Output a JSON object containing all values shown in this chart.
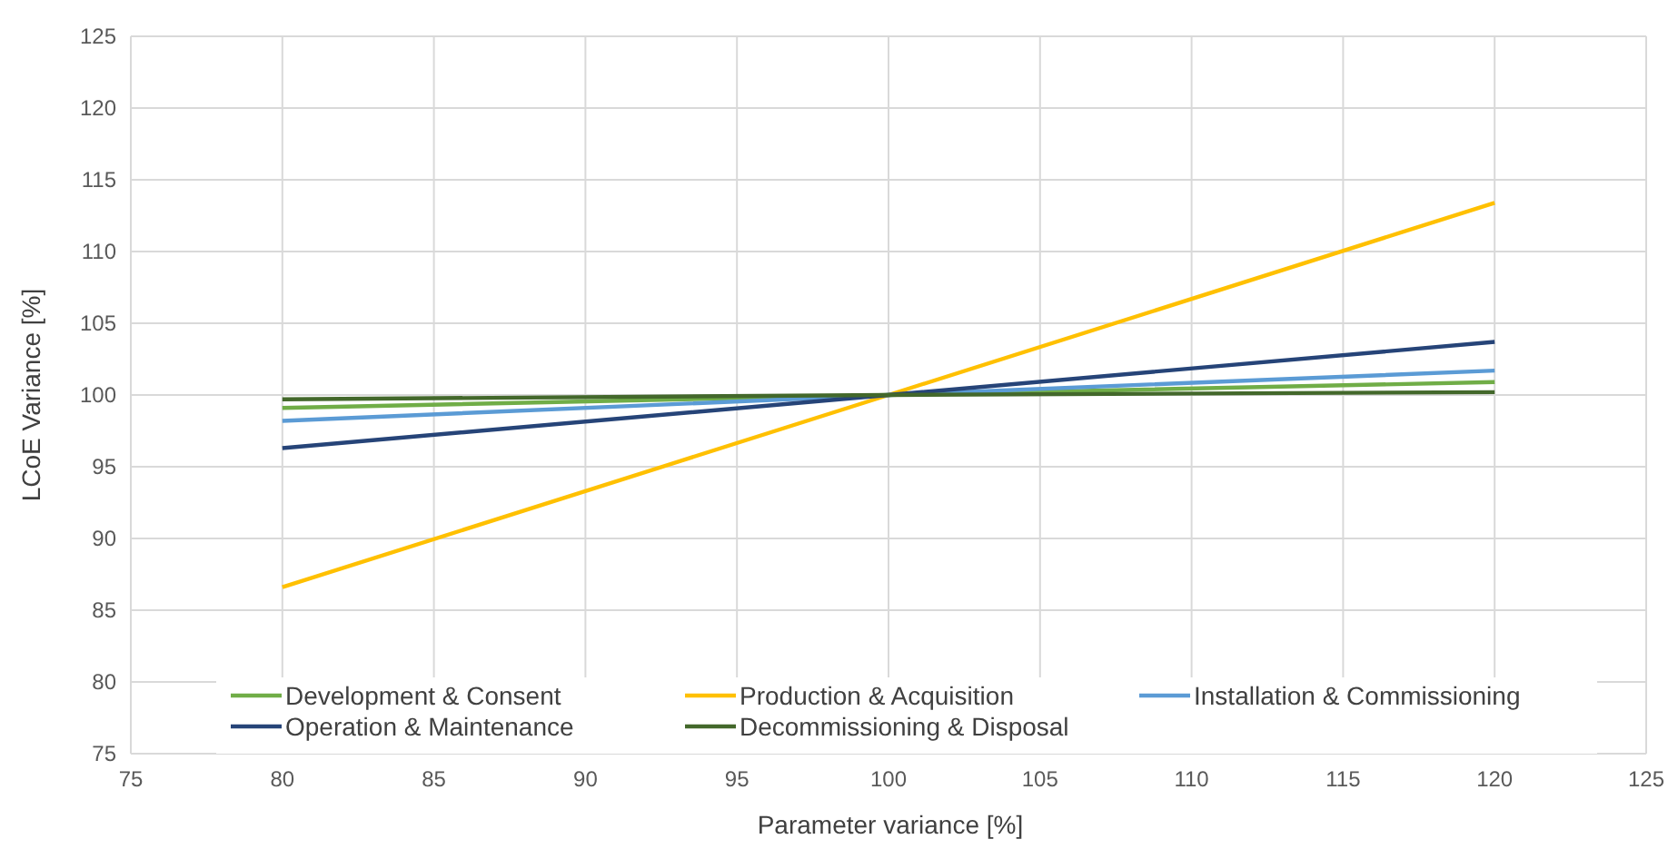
{
  "chart_data": {
    "type": "line",
    "xlabel": "Parameter variance [%]",
    "ylabel": "LCoE Variance [%]",
    "x": [
      80,
      100,
      120
    ],
    "xlim": [
      75,
      125
    ],
    "xticks": [
      75,
      80,
      85,
      90,
      95,
      100,
      105,
      110,
      115,
      120,
      125
    ],
    "ylim": [
      75,
      125
    ],
    "yticks": [
      75,
      80,
      85,
      90,
      95,
      100,
      105,
      110,
      115,
      120,
      125
    ],
    "grid": true,
    "legend": "bottom",
    "marker": "none",
    "line_style": "solid",
    "series": [
      {
        "name": "Development & Consent",
        "color": "#70ad47",
        "values": [
          99.1,
          100,
          100.9
        ]
      },
      {
        "name": "Production & Acquisition",
        "color": "#ffc000",
        "values": [
          86.6,
          100,
          113.4
        ]
      },
      {
        "name": "Installation & Commissioning",
        "color": "#5b9bd5",
        "values": [
          98.2,
          100,
          101.7
        ]
      },
      {
        "name": "Operation & Maintenance",
        "color": "#264478",
        "values": [
          96.3,
          100,
          103.7
        ]
      },
      {
        "name": "Decommissioning & Disposal",
        "color": "#43682b",
        "values": [
          99.7,
          100,
          100.2
        ]
      }
    ]
  }
}
